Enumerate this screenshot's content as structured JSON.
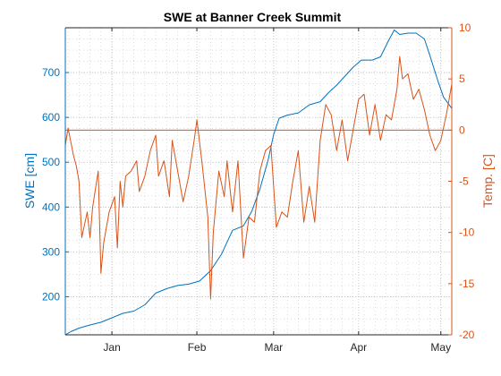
{
  "chart_data": {
    "type": "line",
    "title": "SWE at Banner Creek Summit",
    "colors": {
      "swe": "#0072BD",
      "temp": "#D95319",
      "axis": "#262626",
      "grid": "#c8c8c8"
    },
    "x_axis": {
      "range": [
        "2016-12-15",
        "2017-05-05"
      ],
      "tick_dates": [
        "2017-01-01",
        "2017-02-01",
        "2017-03-01",
        "2017-04-01",
        "2017-05-01"
      ],
      "tick_labels": [
        "Jan",
        "Feb",
        "Mar",
        "Apr",
        "May"
      ],
      "grid": true,
      "minor_grid": true
    },
    "y_left": {
      "label": "SWE [cm]",
      "range": [
        115,
        800
      ],
      "ticks": [
        200,
        300,
        400,
        500,
        600,
        700
      ]
    },
    "y_right": {
      "label": "Temp. [C]",
      "range": [
        -20,
        10
      ],
      "ticks": [
        -20,
        -15,
        -10,
        -5,
        0,
        5,
        10
      ]
    },
    "series": [
      {
        "axis": "left",
        "points": [
          [
            "2016-12-15",
            115
          ],
          [
            "2016-12-17",
            122
          ],
          [
            "2016-12-20",
            130
          ],
          [
            "2016-12-24",
            137
          ],
          [
            "2016-12-28",
            143
          ],
          [
            "2017-01-01",
            153
          ],
          [
            "2017-01-05",
            163
          ],
          [
            "2017-01-09",
            168
          ],
          [
            "2017-01-13",
            182
          ],
          [
            "2017-01-17",
            208
          ],
          [
            "2017-01-21",
            218
          ],
          [
            "2017-01-25",
            225
          ],
          [
            "2017-01-29",
            228
          ],
          [
            "2017-02-02",
            235
          ],
          [
            "2017-02-06",
            258
          ],
          [
            "2017-02-10",
            295
          ],
          [
            "2017-02-14",
            348
          ],
          [
            "2017-02-18",
            358
          ],
          [
            "2017-02-21",
            390
          ],
          [
            "2017-02-24",
            440
          ],
          [
            "2017-02-27",
            505
          ],
          [
            "2017-03-01",
            562
          ],
          [
            "2017-03-03",
            598
          ],
          [
            "2017-03-06",
            605
          ],
          [
            "2017-03-10",
            610
          ],
          [
            "2017-03-14",
            628
          ],
          [
            "2017-03-18",
            635
          ],
          [
            "2017-03-21",
            655
          ],
          [
            "2017-03-24",
            672
          ],
          [
            "2017-03-27",
            692
          ],
          [
            "2017-03-30",
            712
          ],
          [
            "2017-04-02",
            728
          ],
          [
            "2017-04-06",
            728
          ],
          [
            "2017-04-09",
            735
          ],
          [
            "2017-04-12",
            772
          ],
          [
            "2017-04-14",
            795
          ],
          [
            "2017-04-16",
            785
          ],
          [
            "2017-04-19",
            788
          ],
          [
            "2017-04-22",
            788
          ],
          [
            "2017-04-25",
            775
          ],
          [
            "2017-04-27",
            738
          ],
          [
            "2017-04-30",
            680
          ],
          [
            "2017-05-02",
            645
          ],
          [
            "2017-05-05",
            620
          ]
        ]
      },
      {
        "axis": "right",
        "points": [
          [
            "2016-12-15",
            -1.5
          ],
          [
            "2016-12-16",
            0.2
          ],
          [
            "2016-12-18",
            -2.5
          ],
          [
            "2016-12-19",
            -3.5
          ],
          [
            "2016-12-20",
            -5
          ],
          [
            "2016-12-21",
            -10.5
          ],
          [
            "2016-12-23",
            -8
          ],
          [
            "2016-12-24",
            -10.5
          ],
          [
            "2016-12-25",
            -7.5
          ],
          [
            "2016-12-27",
            -4
          ],
          [
            "2016-12-28",
            -14
          ],
          [
            "2016-12-29",
            -11
          ],
          [
            "2016-12-31",
            -8
          ],
          [
            "2017-01-02",
            -6.5
          ],
          [
            "2017-01-03",
            -11.5
          ],
          [
            "2017-01-04",
            -5
          ],
          [
            "2017-01-05",
            -7.5
          ],
          [
            "2017-01-06",
            -4.5
          ],
          [
            "2017-01-08",
            -4
          ],
          [
            "2017-01-10",
            -3
          ],
          [
            "2017-01-11",
            -6
          ],
          [
            "2017-01-13",
            -4.5
          ],
          [
            "2017-01-15",
            -2
          ],
          [
            "2017-01-17",
            -0.5
          ],
          [
            "2017-01-18",
            -4.5
          ],
          [
            "2017-01-20",
            -3
          ],
          [
            "2017-01-22",
            -6.5
          ],
          [
            "2017-01-23",
            -1
          ],
          [
            "2017-01-25",
            -4
          ],
          [
            "2017-01-27",
            -7
          ],
          [
            "2017-01-29",
            -4.5
          ],
          [
            "2017-01-31",
            -1
          ],
          [
            "2017-02-01",
            1
          ],
          [
            "2017-02-03",
            -3.5
          ],
          [
            "2017-02-05",
            -8.5
          ],
          [
            "2017-02-06",
            -16.5
          ],
          [
            "2017-02-07",
            -10
          ],
          [
            "2017-02-09",
            -4
          ],
          [
            "2017-02-11",
            -6.5
          ],
          [
            "2017-02-12",
            -3
          ],
          [
            "2017-02-14",
            -8
          ],
          [
            "2017-02-16",
            -3
          ],
          [
            "2017-02-18",
            -12.5
          ],
          [
            "2017-02-20",
            -8.5
          ],
          [
            "2017-02-22",
            -9
          ],
          [
            "2017-02-24",
            -4
          ],
          [
            "2017-02-26",
            -2
          ],
          [
            "2017-02-28",
            -1.5
          ],
          [
            "2017-03-02",
            -9.5
          ],
          [
            "2017-03-04",
            -8
          ],
          [
            "2017-03-06",
            -8.5
          ],
          [
            "2017-03-08",
            -5
          ],
          [
            "2017-03-10",
            -2
          ],
          [
            "2017-03-12",
            -9
          ],
          [
            "2017-03-14",
            -5.5
          ],
          [
            "2017-03-16",
            -9
          ],
          [
            "2017-03-18",
            -1
          ],
          [
            "2017-03-20",
            2.5
          ],
          [
            "2017-03-22",
            1.5
          ],
          [
            "2017-03-24",
            -2
          ],
          [
            "2017-03-26",
            1
          ],
          [
            "2017-03-28",
            -3
          ],
          [
            "2017-03-30",
            0
          ],
          [
            "2017-04-01",
            3
          ],
          [
            "2017-04-03",
            3.5
          ],
          [
            "2017-04-05",
            -0.5
          ],
          [
            "2017-04-07",
            2.5
          ],
          [
            "2017-04-09",
            -1
          ],
          [
            "2017-04-11",
            1.5
          ],
          [
            "2017-04-13",
            1
          ],
          [
            "2017-04-15",
            4
          ],
          [
            "2017-04-16",
            7.2
          ],
          [
            "2017-04-17",
            5
          ],
          [
            "2017-04-19",
            5.5
          ],
          [
            "2017-04-21",
            3
          ],
          [
            "2017-04-23",
            4
          ],
          [
            "2017-04-25",
            2
          ],
          [
            "2017-04-27",
            -0.5
          ],
          [
            "2017-04-29",
            -2
          ],
          [
            "2017-05-01",
            -1
          ],
          [
            "2017-05-03",
            1.5
          ],
          [
            "2017-05-05",
            4.5
          ]
        ]
      }
    ],
    "reference_line": {
      "axis": "right",
      "value": 0
    }
  }
}
